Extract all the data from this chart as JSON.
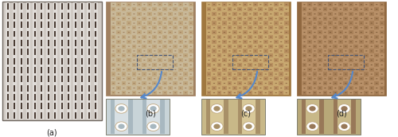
{
  "fig_width": 5.0,
  "fig_height": 1.72,
  "dpi": 100,
  "bg_color": "#ffffff",
  "panel_a": {
    "label": "(a)",
    "main_bg": "#d0cac4",
    "border": "#706860",
    "stripe_bg": "#e0dcd8",
    "slot_color": "#4a3c34",
    "n_cols": 14,
    "n_rows": 13
  },
  "panel_b": {
    "label": "(b)",
    "main_bg": "#c8b898",
    "border": "#a08060",
    "grid_h": "#c0a880",
    "grid_v": "#b09070",
    "dot_color": "#906848",
    "inset_bg": "#c8d4d8",
    "inset_stripe_bg": "#a8b8c0",
    "inset_cell_bg": "#d8e0e4",
    "arrow_color": "#5588cc"
  },
  "panel_c": {
    "label": "(c)",
    "main_bg": "#c8a870",
    "border": "#a07840",
    "grid_h": "#b89060",
    "grid_v": "#a08050",
    "dot_color": "#785030",
    "inset_bg": "#c8b888",
    "inset_stripe_bg": "#a89068",
    "inset_cell_bg": "#d8c898",
    "arrow_color": "#5588cc"
  },
  "panel_d": {
    "label": "(d)",
    "main_bg": "#b89068",
    "border": "#906840",
    "grid_h": "#a88058",
    "grid_v": "#987050",
    "dot_color": "#684828",
    "inset_bg": "#b8a878",
    "inset_stripe_bg": "#987858",
    "inset_cell_bg": "#c8b888",
    "arrow_color": "#5588cc"
  },
  "label_fontsize": 7,
  "label_color": "#222222"
}
